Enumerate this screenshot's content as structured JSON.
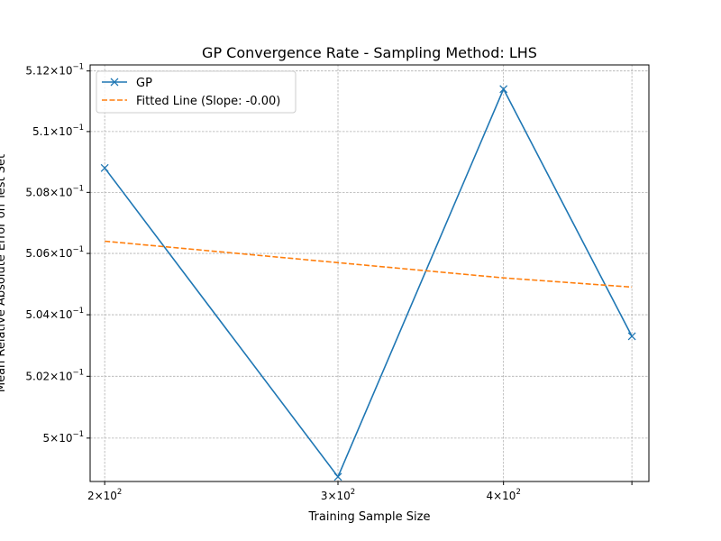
{
  "chart_data": {
    "type": "line",
    "title": "GP Convergence Rate - Sampling Method: LHS",
    "xlabel": "Training Sample Size",
    "ylabel": "Mean Relative Absolute Error on Test Set",
    "xscale": "log",
    "yscale": "log",
    "xlim": [
      195,
      515
    ],
    "ylim": [
      0.4986,
      0.5122
    ],
    "grid": true,
    "legend_position": "top-left",
    "x_ticks": [
      {
        "value": 200,
        "base": "2",
        "exp": "2"
      },
      {
        "value": 300,
        "base": "3",
        "exp": "2"
      },
      {
        "value": 400,
        "base": "4",
        "exp": "2"
      },
      {
        "value": 500,
        "base": "",
        "exp": ""
      }
    ],
    "y_ticks": [
      {
        "value": 0.5,
        "base": "5",
        "exp": "−1"
      },
      {
        "value": 0.502,
        "base": "5.02",
        "exp": "−1"
      },
      {
        "value": 0.504,
        "base": "5.04",
        "exp": "−1"
      },
      {
        "value": 0.506,
        "base": "5.06",
        "exp": "−1"
      },
      {
        "value": 0.508,
        "base": "5.08",
        "exp": "−1"
      },
      {
        "value": 0.51,
        "base": "5.1",
        "exp": "−1"
      },
      {
        "value": 0.512,
        "base": "5.12",
        "exp": "−1"
      }
    ],
    "series": [
      {
        "name": "GP",
        "color": "#1f77b4",
        "style": "solid",
        "marker": "x",
        "x": [
          200,
          300,
          400,
          500
        ],
        "y": [
          0.5088,
          0.49875,
          0.5114,
          0.5033
        ]
      },
      {
        "name": "Fitted Line (Slope: -0.00)",
        "color": "#ff7f0e",
        "style": "dashed",
        "marker": "none",
        "x": [
          200,
          300,
          400,
          500
        ],
        "y": [
          0.5064,
          0.5057,
          0.5052,
          0.5049
        ]
      }
    ]
  }
}
